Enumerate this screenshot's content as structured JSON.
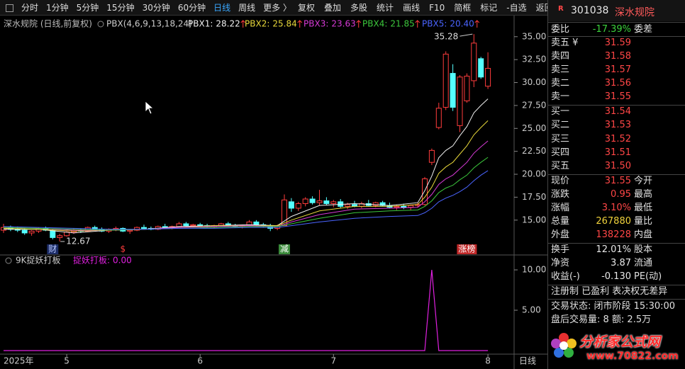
{
  "toolbar": {
    "periods": [
      "分时",
      "1分钟",
      "5分钟",
      "15分钟",
      "30分钟",
      "60分钟",
      "日线",
      "周线",
      "更多 〉"
    ],
    "active_period": 6,
    "tools": [
      "复权",
      "叠加",
      "多股",
      "统计",
      "画线",
      "F10",
      "简框",
      "标记",
      "-自选",
      "返回"
    ]
  },
  "chart_data": [
    {
      "type": "candlestick",
      "title": "深水规院 (日线,前复权)",
      "indicator": "PBX(4,6,9,13,18,24)",
      "up_color": "#ff3c3c",
      "down_color": "#54ffff",
      "open": [
        13.9,
        14.2,
        14.0,
        13.9,
        13.6,
        13.8,
        14.1,
        13.9,
        13.1,
        13.3,
        13.7,
        13.9,
        13.8,
        14.2,
        14.0,
        13.8,
        14.0,
        14.1,
        13.8,
        13.9,
        14.2,
        14.1,
        14.0,
        14.3,
        14.2,
        14.3,
        14.6,
        14.4,
        14.5,
        14.4,
        14.3,
        14.4,
        14.6,
        14.4,
        14.3,
        14.4,
        14.8,
        14.5,
        14.4,
        14.1,
        14.4,
        17.0,
        16.3,
        16.8,
        17.3,
        16.9,
        17.1,
        16.8,
        17.0,
        16.5,
        16.7,
        16.5,
        16.8,
        16.6,
        16.9,
        16.6,
        16.4,
        16.5,
        16.4,
        16.6,
        16.7,
        21.3,
        25.1,
        27.3,
        31.0,
        25.3,
        28.0,
        30.2,
        32.6,
        29.6
      ],
      "high": [
        14.6,
        14.4,
        14.3,
        14.1,
        13.9,
        14.2,
        14.3,
        14.0,
        13.5,
        13.8,
        14.1,
        14.1,
        14.3,
        14.4,
        14.2,
        14.1,
        14.3,
        14.2,
        14.0,
        14.3,
        14.5,
        14.3,
        14.4,
        14.6,
        14.4,
        14.8,
        14.8,
        14.6,
        14.7,
        14.6,
        14.5,
        14.7,
        14.8,
        14.6,
        14.5,
        15.0,
        15.0,
        14.7,
        14.6,
        14.5,
        17.8,
        17.4,
        17.0,
        17.5,
        17.6,
        18.3,
        17.5,
        17.2,
        17.3,
        16.9,
        17.1,
        17.0,
        17.2,
        17.0,
        17.1,
        16.9,
        16.7,
        16.8,
        16.7,
        16.9,
        19.7,
        22.8,
        27.8,
        33.4,
        32.0,
        30.8,
        31.0,
        35.28,
        32.8,
        33.3
      ],
      "low": [
        13.6,
        13.8,
        13.7,
        13.4,
        13.3,
        13.6,
        13.8,
        12.9,
        12.67,
        13.2,
        13.5,
        13.6,
        13.7,
        13.9,
        13.7,
        13.6,
        13.8,
        13.7,
        13.5,
        13.8,
        14.0,
        13.9,
        13.9,
        14.1,
        14.0,
        14.2,
        14.3,
        14.2,
        14.3,
        14.2,
        14.1,
        14.3,
        14.3,
        14.2,
        14.1,
        14.3,
        14.4,
        14.2,
        13.8,
        13.9,
        14.4,
        15.9,
        16.0,
        16.5,
        16.7,
        16.6,
        16.6,
        16.4,
        16.3,
        16.2,
        16.4,
        16.3,
        16.5,
        16.4,
        16.5,
        16.3,
        16.1,
        16.2,
        16.1,
        16.4,
        16.6,
        21.0,
        24.9,
        27.0,
        26.9,
        24.6,
        27.8,
        29.5,
        30.4,
        29.3
      ],
      "close": [
        14.2,
        14.0,
        13.9,
        13.6,
        13.8,
        14.1,
        13.9,
        13.1,
        13.3,
        13.7,
        13.9,
        13.8,
        14.2,
        14.0,
        13.8,
        14.0,
        14.1,
        13.8,
        13.9,
        14.2,
        14.1,
        14.0,
        14.3,
        14.2,
        14.3,
        14.6,
        14.4,
        14.5,
        14.4,
        14.3,
        14.4,
        14.6,
        14.4,
        14.3,
        14.4,
        14.8,
        14.5,
        14.4,
        14.1,
        14.4,
        17.2,
        16.3,
        16.8,
        17.3,
        16.9,
        17.1,
        16.8,
        17.0,
        16.5,
        16.7,
        16.5,
        16.8,
        16.6,
        16.9,
        16.6,
        16.4,
        16.5,
        16.4,
        16.6,
        16.7,
        19.5,
        22.6,
        27.2,
        33.1,
        27.3,
        30.6,
        30.7,
        34.3,
        30.6,
        31.55
      ],
      "line_x": [
        0,
        5,
        10,
        15,
        20,
        25,
        30,
        35,
        39,
        41,
        45,
        50,
        55,
        59,
        60,
        61,
        62,
        63,
        64,
        65,
        66,
        67,
        68,
        69
      ],
      "series": [
        {
          "name": "PBX1:",
          "legend_value": "28.22",
          "color": "#f0f0f0",
          "values": [
            14.0,
            14.0,
            13.6,
            13.9,
            14.0,
            14.3,
            14.4,
            14.5,
            14.4,
            15.4,
            16.6,
            16.8,
            16.6,
            16.9,
            18.2,
            19.8,
            21.8,
            22.6,
            23.1,
            24.2,
            25.2,
            26.7,
            27.5,
            28.22
          ]
        },
        {
          "name": "PBX2:",
          "legend_value": "25.84",
          "color": "#e8d83a",
          "values": [
            14.1,
            14.0,
            13.8,
            13.9,
            14.0,
            14.2,
            14.4,
            14.4,
            14.4,
            15.0,
            16.0,
            16.5,
            16.5,
            16.7,
            17.5,
            18.6,
            20.1,
            20.8,
            21.3,
            22.2,
            23.1,
            24.3,
            25.1,
            25.84
          ]
        },
        {
          "name": "PBX3:",
          "legend_value": "23.63",
          "color": "#d63ad6",
          "values": [
            14.2,
            14.1,
            13.9,
            13.9,
            14.0,
            14.2,
            14.3,
            14.4,
            14.3,
            14.8,
            15.6,
            16.2,
            16.3,
            16.4,
            17.0,
            17.8,
            18.9,
            19.5,
            19.9,
            20.6,
            21.3,
            22.3,
            23.0,
            23.63
          ]
        },
        {
          "name": "PBX4:",
          "legend_value": "21.85",
          "color": "#3cc83c",
          "values": [
            14.2,
            14.1,
            14.0,
            13.9,
            14.0,
            14.1,
            14.2,
            14.3,
            14.3,
            14.6,
            15.2,
            15.8,
            16.0,
            16.1,
            16.5,
            17.1,
            18.0,
            18.5,
            18.8,
            19.4,
            19.9,
            20.7,
            21.3,
            21.85
          ]
        },
        {
          "name": "PBX5:",
          "legend_value": "20.40",
          "color": "#4a64ff",
          "values": [
            14.3,
            14.2,
            14.1,
            14.0,
            14.0,
            14.1,
            14.1,
            14.2,
            14.2,
            14.4,
            14.8,
            15.2,
            15.4,
            15.5,
            15.8,
            16.3,
            17.0,
            17.4,
            17.7,
            18.1,
            18.6,
            19.3,
            19.9,
            20.4
          ]
        }
      ],
      "ylim": [
        11.2,
        37.3
      ],
      "yticks": [
        {
          "value": 15,
          "label": "15.00"
        },
        {
          "value": 17.5,
          "label": "17.50"
        },
        {
          "value": 20,
          "label": "20.00"
        },
        {
          "value": 22.5,
          "label": "22.50"
        },
        {
          "value": 25,
          "label": "25.00"
        },
        {
          "value": 27.5,
          "label": "27.50"
        },
        {
          "value": 30,
          "label": "30.00"
        },
        {
          "value": 32.5,
          "label": "32.50"
        },
        {
          "value": 35,
          "label": "35.00"
        }
      ],
      "xlabel": "2025年",
      "xticks": [
        {
          "value": 9,
          "label": "5"
        },
        {
          "value": 28,
          "label": "6"
        },
        {
          "value": 47,
          "label": "7"
        },
        {
          "value": 69,
          "label": "8"
        }
      ],
      "events": [
        {
          "label": "财",
          "index": 7,
          "color": "#b8c8ff",
          "bg": "#1c2c66"
        },
        {
          "label": "$",
          "index": 17,
          "color": "#ff3c3c",
          "bg": "#000000"
        },
        {
          "label": "减",
          "index": 40,
          "color": "#ffffff",
          "bg": "#3a8a3a"
        },
        {
          "label": "涨榜",
          "index": 66,
          "color": "#ffffff",
          "bg": "#c02828"
        }
      ]
    },
    {
      "type": "line",
      "title": "9K捉妖打板",
      "series": [
        {
          "name": "捉妖打板:",
          "legend_value": "0.00",
          "color": "#e020e0",
          "values": [
            0,
            0,
            0,
            0,
            0,
            0,
            0,
            0,
            0,
            0,
            0,
            0,
            0,
            0,
            0,
            0,
            0,
            0,
            0,
            0,
            0,
            0,
            0,
            0,
            0,
            0,
            0,
            0,
            0,
            0,
            0,
            0,
            0,
            0,
            0,
            0,
            0,
            0,
            0,
            0,
            0,
            0,
            0,
            0,
            0,
            0,
            0,
            0,
            0,
            0,
            0,
            0,
            0,
            0,
            0,
            0,
            0,
            0,
            0,
            0,
            0,
            10,
            0,
            0,
            0,
            0,
            0,
            0,
            0,
            0
          ]
        }
      ],
      "ylim": [
        0,
        11.67
      ],
      "yticks": [
        {
          "value": 5,
          "label": "5.00"
        },
        {
          "value": 10,
          "label": "10.00"
        }
      ]
    }
  ],
  "footer": {
    "period": "日线"
  },
  "quote": {
    "badge": "R",
    "code": "301038",
    "name": "深水规院",
    "ratio": {
      "label": "委比",
      "value": "-17.39%",
      "label2": "委差",
      "color": "#3cd23c"
    },
    "price_color": "#ff4646",
    "asks": [
      {
        "label": "卖五 ¥",
        "price": "31.59"
      },
      {
        "label": "卖四",
        "price": "31.58"
      },
      {
        "label": "卖三",
        "price": "31.57"
      },
      {
        "label": "卖二",
        "price": "31.56"
      },
      {
        "label": "卖一",
        "price": "31.55"
      }
    ],
    "bids": [
      {
        "label": "买一",
        "price": "31.54"
      },
      {
        "label": "买二",
        "price": "31.53"
      },
      {
        "label": "买三",
        "price": "31.52"
      },
      {
        "label": "买四",
        "price": "31.51"
      },
      {
        "label": "买五",
        "price": "31.50"
      }
    ],
    "stats": [
      {
        "label": "现价",
        "value": "31.55",
        "label2": "今开",
        "color": "#ff4646"
      },
      {
        "label": "涨跌",
        "value": "0.95",
        "label2": "最高",
        "color": "#ff4646"
      },
      {
        "label": "涨幅",
        "value": "3.10%",
        "label2": "最低",
        "color": "#ff4646"
      },
      {
        "label": "总量",
        "value": "267880",
        "label2": "量比",
        "color": "#f0d23c"
      },
      {
        "label": "外盘",
        "value": "138228",
        "label2": "内盘",
        "color": "#ff4646"
      }
    ],
    "stats2": [
      {
        "label": "换手",
        "value": "12.01%",
        "label2": "股本",
        "color": "#e8e8e8"
      },
      {
        "label": "净资",
        "value": "3.87",
        "label2": "流通",
        "color": "#e8e8e8"
      },
      {
        "label": "收益(-)",
        "value": "-0.130",
        "label2": "PE(动)",
        "color": "#e8e8e8"
      }
    ],
    "tags": "注册制 已盈利 表决权无差异",
    "status": [
      "交易状态: 闭市阶段 15:30:00",
      "盘后交易量: 8 额: 2.5万"
    ]
  },
  "logo": {
    "name": "分析家公式网",
    "url": "www.70822.com"
  }
}
